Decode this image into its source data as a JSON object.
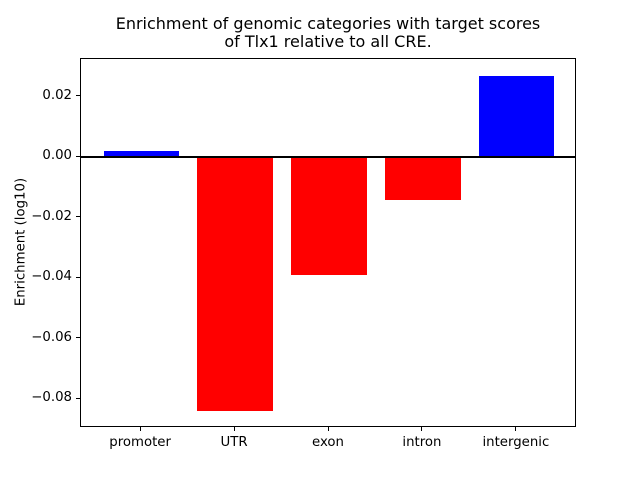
{
  "figure": {
    "background_color": "#ffffff",
    "title_line1": "Enrichment of genomic categories with target scores",
    "title_line2": "of Tlx1 relative to all CRE.",
    "ylabel": "Enrichment (log10)"
  },
  "chart_data": {
    "type": "bar",
    "title": "Enrichment of genomic categories with target scores\nof Tlx1 relative to all CRE.",
    "xlabel": "",
    "ylabel": "Enrichment (log10)",
    "categories": [
      "promoter",
      "UTR",
      "exon",
      "intron",
      "intergenic"
    ],
    "values": [
      0.002,
      -0.084,
      -0.039,
      -0.014,
      0.027
    ],
    "bar_colors": [
      "#0000ff",
      "#ff0000",
      "#ff0000",
      "#ff0000",
      "#0000ff"
    ],
    "positive_color": "#0000ff",
    "negative_color": "#ff0000",
    "yticks": [
      0.02,
      0.0,
      -0.02,
      -0.04,
      -0.06,
      -0.08
    ],
    "ytick_labels": [
      "0.02",
      "0.00",
      "−0.02",
      "−0.04",
      "−0.06",
      "−0.08"
    ],
    "ylim": [
      -0.0896,
      0.0326
    ],
    "xlim": [
      -0.64,
      4.64
    ],
    "bar_width": 0.8,
    "zero_line": true,
    "grid": false,
    "legend": null,
    "spine_color": "#000000",
    "text_color": "#000000"
  }
}
